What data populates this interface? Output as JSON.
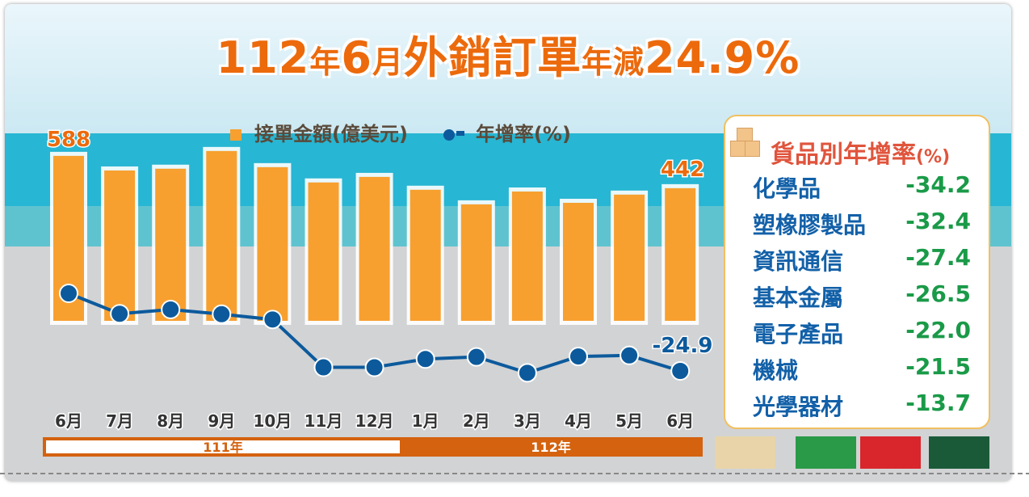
{
  "title": {
    "p1": "112",
    "p2": "年",
    "p3": "6",
    "p4": "月",
    "p5": "外銷訂單",
    "p6": "年減",
    "p7": "24.9%"
  },
  "legend": {
    "bar": "接單金額(億美元)",
    "line": "年增率(%)"
  },
  "chart_data": {
    "type": "bar+line",
    "categories": [
      "6月",
      "7月",
      "8月",
      "9月",
      "10月",
      "11月",
      "12月",
      "1月",
      "2月",
      "3月",
      "4月",
      "5月",
      "6月"
    ],
    "series": [
      {
        "name": "接單金額(億美元)",
        "type": "bar",
        "values": [
          588,
          522,
          530,
          610,
          537,
          468,
          493,
          435,
          369,
          427,
          376,
          413,
          442
        ]
      },
      {
        "name": "年增率(%)",
        "type": "line",
        "values": [
          11.6,
          2.0,
          4.0,
          1.8,
          -0.7,
          -23.2,
          -23.2,
          -19.3,
          -18.3,
          -25.8,
          -18.1,
          -17.6,
          -24.9
        ]
      }
    ],
    "data_labels": {
      "first_bar": "588",
      "last_bar": "442",
      "last_line": "-24.9"
    },
    "year_groups": [
      {
        "label": "111年",
        "span": [
          0,
          6
        ]
      },
      {
        "label": "112年",
        "span": [
          7,
          12
        ]
      }
    ],
    "colors": {
      "bar": "#f7a030",
      "line": "#0c5a9c",
      "year111": "#ffffff",
      "year112": "#d4620e"
    }
  },
  "panel": {
    "title": "貨品別年增率",
    "title_unit": "(%)",
    "items": [
      {
        "name": "化學品",
        "value": "-34.2"
      },
      {
        "name": "塑橡膠製品",
        "value": "-32.4"
      },
      {
        "name": "資訊通信",
        "value": "-27.4"
      },
      {
        "name": "基本金屬",
        "value": "-26.5"
      },
      {
        "name": "電子產品",
        "value": "-22.0"
      },
      {
        "name": "機械",
        "value": "-21.5"
      },
      {
        "name": "光學器材",
        "value": "-13.7"
      }
    ]
  }
}
